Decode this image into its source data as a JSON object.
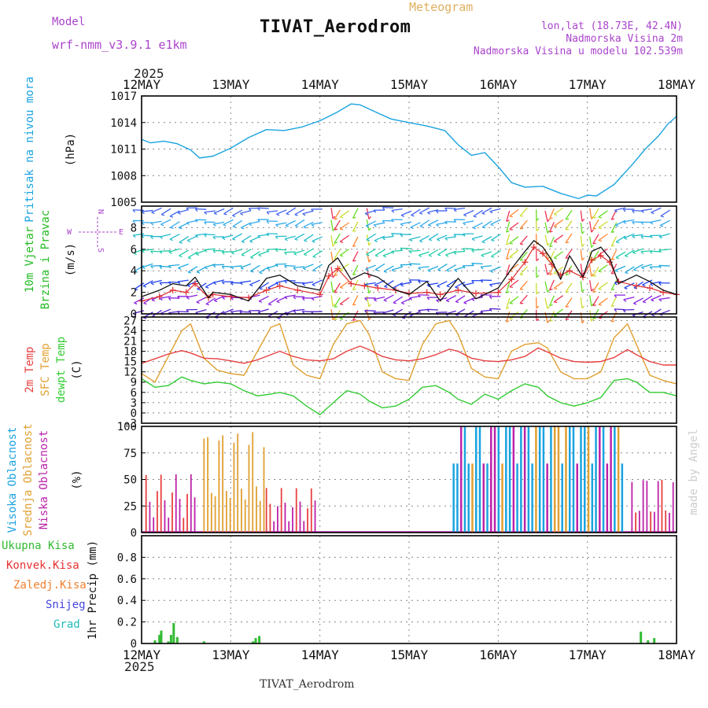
{
  "header": {
    "model_label": "Model",
    "model_name": "wrf-nmm_v3.9.1 e1km",
    "title": "TIVAT_Aerodrom",
    "subtitle": "Meteogram",
    "lonlat": "lon,lat (18.73E, 42.4N)",
    "height": "Nadmorska Visina 2m",
    "model_height": "Nadmorska Visina u modelu 102.539m",
    "year_top": "2025",
    "year_bottom": "2025",
    "footer": "TIVAT_Aerodrom",
    "credit": "made by Angel"
  },
  "colors": {
    "pressure": "#1aa3e0",
    "wind_label": "#22bb22",
    "temp2m": "#e84040",
    "sfc": "#e0a030",
    "dewpt": "#33cc33",
    "cloud_high": "#1aa3e0",
    "cloud_mid": "#e0a030",
    "cloud_low": "#bb22aa",
    "precip_total": "#33bb33",
    "precip_conv": "#e83030",
    "precip_frozen": "#f08030",
    "precip_snow": "#4444dd",
    "precip_grad": "#22bbbb",
    "header_purple": "#aa44cc",
    "title_orange": "#e0b060"
  },
  "chart_data": [
    {
      "panel": "pressure",
      "type": "line",
      "ylabel_lines": [
        "Pritisak na nivou mora",
        "(hPa)"
      ],
      "ylim": [
        1005,
        1017
      ],
      "yticks": [
        1005,
        1008,
        1011,
        1014,
        1017
      ],
      "xticks": [
        "12MAY",
        "13MAY",
        "14MAY",
        "15MAY",
        "16MAY",
        "17MAY",
        "18MAY"
      ],
      "x": [
        0,
        0.1,
        0.25,
        0.4,
        0.55,
        0.65,
        0.8,
        1.0,
        1.2,
        1.4,
        1.6,
        1.8,
        2.0,
        2.2,
        2.35,
        2.45,
        2.6,
        2.8,
        3.0,
        3.2,
        3.4,
        3.55,
        3.7,
        3.85,
        4.0,
        4.15,
        4.3,
        4.5,
        4.7,
        4.9,
        5.0,
        5.1,
        5.3,
        5.5,
        5.65,
        5.8,
        5.9,
        6.0
      ],
      "y": [
        1012.1,
        1011.7,
        1011.9,
        1011.6,
        1010.9,
        1010.0,
        1010.2,
        1011.1,
        1012.3,
        1013.2,
        1013.1,
        1013.5,
        1014.2,
        1015.2,
        1016.1,
        1016.0,
        1015.3,
        1014.4,
        1014.0,
        1013.6,
        1013.1,
        1011.5,
        1010.3,
        1010.6,
        1009.0,
        1007.2,
        1006.7,
        1006.8,
        1006.0,
        1005.4,
        1005.8,
        1005.7,
        1007.0,
        1009.2,
        1011.0,
        1012.5,
        1013.8,
        1014.7
      ],
      "series": [
        {
          "name": "Pritisak na nivou mora"
        }
      ]
    },
    {
      "panel": "wind",
      "type": "line",
      "ylabel_lines": [
        "10m Vjetar",
        "Brzina i Pravac",
        "(m/s)"
      ],
      "compass": [
        "N",
        "W",
        "E",
        "S"
      ],
      "ylim": [
        0,
        10
      ],
      "yticks": [
        0,
        2,
        4,
        6,
        8
      ],
      "x": [
        0,
        0.2,
        0.35,
        0.5,
        0.6,
        0.75,
        0.8,
        1.0,
        1.2,
        1.4,
        1.55,
        1.75,
        2.0,
        2.1,
        2.2,
        2.35,
        2.5,
        2.65,
        2.85,
        3.0,
        3.2,
        3.35,
        3.55,
        3.75,
        4.0,
        4.15,
        4.3,
        4.4,
        4.5,
        4.6,
        4.7,
        4.8,
        4.95,
        5.05,
        5.15,
        5.25,
        5.35,
        5.55,
        5.7,
        5.85,
        6.0
      ],
      "speed": [
        1.6,
        2.2,
        2.8,
        2.6,
        3.4,
        1.5,
        2.0,
        1.8,
        1.2,
        3.3,
        3.6,
        2.6,
        2.2,
        4.5,
        5.2,
        3.2,
        3.8,
        3.4,
        2.2,
        1.8,
        3.0,
        1.2,
        3.3,
        1.4,
        2.4,
        4.2,
        5.8,
        6.8,
        6.2,
        5.0,
        3.2,
        5.4,
        3.4,
        5.8,
        6.2,
        5.2,
        2.8,
        3.6,
        3.0,
        2.2,
        1.8
      ],
      "gust": [
        1.2,
        1.6,
        2.2,
        2.0,
        2.8,
        1.5,
        1.8,
        1.6,
        1.5,
        2.2,
        2.6,
        2.2,
        1.8,
        3.5,
        4.2,
        2.8,
        2.6,
        2.4,
        2.2,
        1.9,
        2.0,
        1.8,
        2.2,
        1.9,
        2.0,
        3.2,
        4.8,
        6.2,
        5.6,
        4.6,
        3.6,
        4.0,
        3.4,
        5.0,
        5.4,
        4.8,
        3.0,
        2.6,
        2.4,
        2.0,
        1.8
      ]
    },
    {
      "panel": "temperature",
      "type": "line",
      "ylabel_lines": [
        "2m Temp",
        "SFC Temp",
        "dewpt Temp",
        "(C)"
      ],
      "ylim": [
        -3,
        28
      ],
      "yticks": [
        -3,
        0,
        3,
        6,
        9,
        12,
        15,
        18,
        21,
        24,
        27
      ],
      "x": [
        0,
        0.15,
        0.3,
        0.45,
        0.55,
        0.7,
        0.85,
        1.0,
        1.15,
        1.3,
        1.45,
        1.55,
        1.7,
        1.85,
        2.0,
        2.15,
        2.3,
        2.45,
        2.55,
        2.7,
        2.85,
        3.0,
        3.15,
        3.3,
        3.45,
        3.55,
        3.7,
        3.85,
        4.0,
        4.15,
        4.3,
        4.45,
        4.55,
        4.7,
        4.85,
        5.0,
        5.15,
        5.3,
        5.45,
        5.55,
        5.7,
        5.85,
        6.0
      ],
      "temp2m": [
        14.5,
        15.8,
        17.2,
        18.2,
        17.5,
        16.0,
        15.8,
        15.2,
        14.5,
        15.5,
        17.0,
        18.0,
        16.5,
        15.5,
        15.2,
        15.8,
        18.0,
        19.5,
        18.5,
        16.5,
        15.5,
        15.2,
        15.8,
        17.0,
        18.6,
        18.0,
        16.0,
        15.2,
        15.0,
        15.5,
        16.5,
        19.0,
        17.8,
        16.0,
        15.0,
        14.8,
        15.0,
        16.2,
        18.5,
        17.0,
        15.0,
        14.0,
        14.0
      ],
      "sfc": [
        11.5,
        9.0,
        16.5,
        24.0,
        26.0,
        16.0,
        12.5,
        11.5,
        11.0,
        18.0,
        25.0,
        26.0,
        14.0,
        11.0,
        10.0,
        20.0,
        26.0,
        27.0,
        23.0,
        12.0,
        10.0,
        9.5,
        20.0,
        26.0,
        27.0,
        23.0,
        13.0,
        10.5,
        10.0,
        18.0,
        20.0,
        20.5,
        19.0,
        12.0,
        10.0,
        10.0,
        12.0,
        22.0,
        26.0,
        20.0,
        11.0,
        9.5,
        8.5
      ],
      "dewpt": [
        10.0,
        7.5,
        8.0,
        10.5,
        9.5,
        8.5,
        9.0,
        8.5,
        6.5,
        5.0,
        5.5,
        6.0,
        5.0,
        2.0,
        -0.5,
        3.0,
        6.5,
        5.5,
        3.5,
        1.5,
        2.0,
        4.0,
        7.5,
        8.0,
        6.0,
        4.0,
        2.5,
        5.5,
        4.0,
        6.5,
        8.5,
        7.5,
        5.0,
        3.0,
        2.0,
        3.0,
        4.5,
        9.5,
        10.0,
        9.0,
        6.0,
        6.0,
        5.0
      ]
    },
    {
      "panel": "cloud",
      "type": "bar",
      "ylabel_lines": [
        "Visoka Oblacnost",
        "Srednja Oblacnost",
        "Niska Oblacnost",
        "(%)"
      ],
      "ylim": [
        0,
        100
      ],
      "yticks": [
        0,
        25,
        50,
        75,
        100
      ],
      "spans": [
        {
          "from": 0.05,
          "to": 0.6,
          "level": "low",
          "max": 55
        },
        {
          "from": 0.7,
          "to": 1.4,
          "level": "mid",
          "max": 100
        },
        {
          "from": 1.4,
          "to": 1.95,
          "level": "low",
          "max": 42
        },
        {
          "from": 3.5,
          "to": 5.4,
          "level": "high",
          "max": 100
        },
        {
          "from": 5.5,
          "to": 6.0,
          "level": "low",
          "max": 55
        }
      ]
    },
    {
      "panel": "precip",
      "type": "bar",
      "ylabel_lines": [
        "1hr Precip (mm)"
      ],
      "legend": [
        "Ukupna Kisa",
        "Konvek.Kisa",
        "Zaledj.Kisa",
        "Snijeg",
        "Grad"
      ],
      "ylim": [
        0,
        1.0
      ],
      "yticks": [
        0,
        0.2,
        0.4,
        0.6,
        0.8
      ],
      "xticks": [
        "12MAY",
        "13MAY",
        "14MAY",
        "15MAY",
        "16MAY",
        "17MAY",
        "18MAY"
      ],
      "x": [
        0.15,
        0.2,
        0.22,
        0.3,
        0.33,
        0.36,
        0.4,
        0.7,
        1.25,
        1.28,
        1.32,
        5.6,
        5.68,
        5.75
      ],
      "values": [
        0.03,
        0.08,
        0.12,
        0.02,
        0.08,
        0.19,
        0.06,
        0.02,
        0.02,
        0.05,
        0.07,
        0.11,
        0.03,
        0.05
      ]
    }
  ]
}
